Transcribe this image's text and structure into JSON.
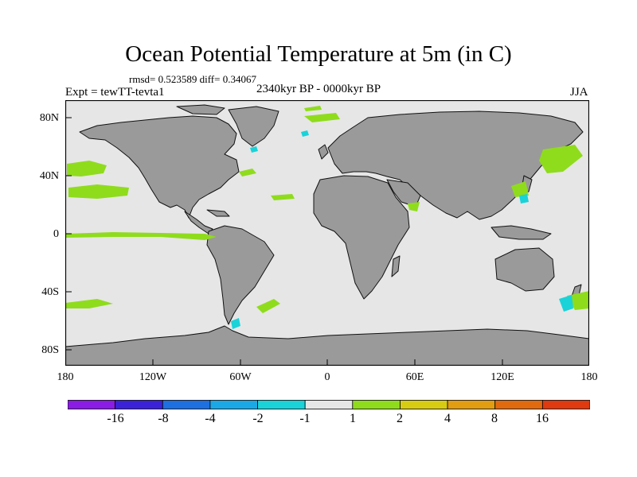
{
  "title": "Ocean Potential Temperature at 5m (in C)",
  "stats": "rmsd= 0.523589  diff= 0.34067",
  "experiment": "Expt = tewTT-tevta1",
  "period": "2340kyr BP - 0000kyr BP",
  "season": "JJA",
  "lat_labels": [
    "80N",
    "40N",
    "0",
    "40S",
    "80S"
  ],
  "lat_values": [
    80,
    40,
    0,
    -40,
    -80
  ],
  "lon_labels": [
    "180",
    "120W",
    "60W",
    "0",
    "60E",
    "120E",
    "180"
  ],
  "lon_values": [
    -180,
    -120,
    -60,
    0,
    60,
    120,
    180
  ],
  "map_extent": {
    "lon": [
      -180,
      180
    ],
    "lat": [
      -90,
      90
    ]
  },
  "colors": {
    "ocean": "#e6e6e6",
    "land": "#9a9a9a",
    "coast": "#000000",
    "positive_small": "#8fdc1c",
    "negative_small": "#19d3d9"
  },
  "colorbar": {
    "colors": [
      "#8a1ce6",
      "#3b22d9",
      "#1e6fe0",
      "#1aa9e6",
      "#19d3d9",
      "#e6e6e6",
      "#8fdc1c",
      "#d8cc12",
      "#e29d10",
      "#e26a0e",
      "#df3a10"
    ],
    "labels": [
      "-16",
      "-8",
      "-4",
      "-2",
      "-1",
      "1",
      "2",
      "4",
      "8",
      "16"
    ]
  }
}
